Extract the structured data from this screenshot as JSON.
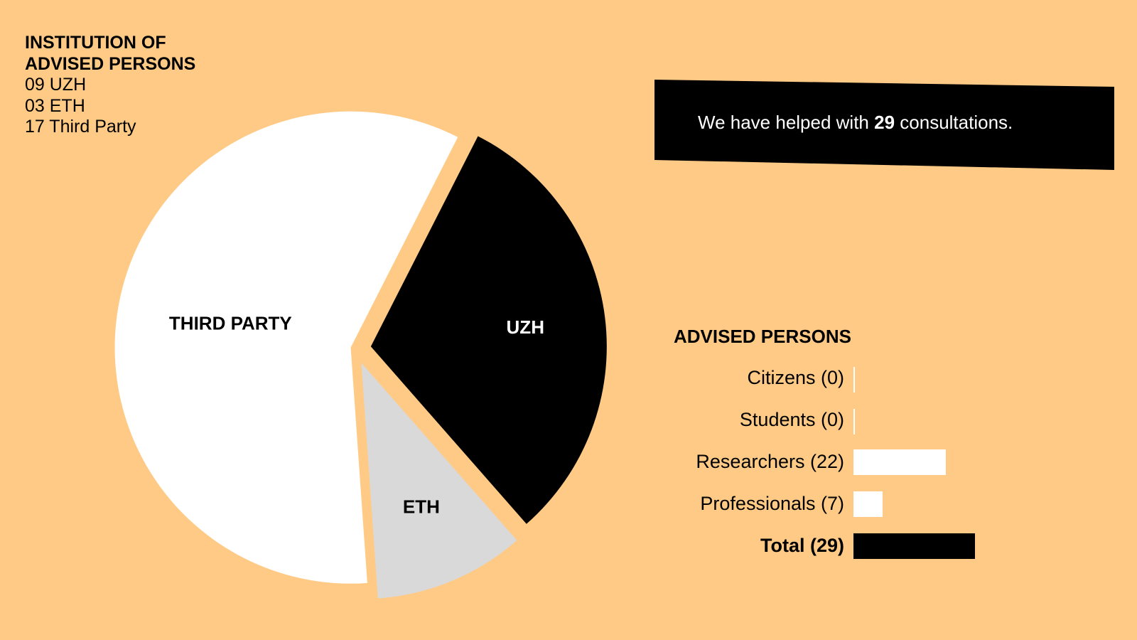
{
  "legend": {
    "title_line1": "INSTITUTION OF",
    "title_line2": "ADVISED PERSONS",
    "items": [
      "09 UZH",
      "03 ETH",
      "17 Third Party"
    ]
  },
  "banner": {
    "prefix": "We have helped with ",
    "count": "29",
    "suffix": " consultations."
  },
  "bar_section": {
    "title": "ADVISED PERSONS"
  },
  "colors": {
    "background": "#FFCA85",
    "uzh": "#000000",
    "eth": "#D9D9D9",
    "third_party": "#FFFFFF",
    "bar": "#FFFFFF",
    "total_bar": "#000000"
  },
  "chart_data": [
    {
      "type": "pie",
      "title": "INSTITUTION OF ADVISED PERSONS",
      "slices": [
        {
          "label": "UZH",
          "value": 9,
          "color": "#000000",
          "label_color": "#FFFFFF"
        },
        {
          "label": "ETH",
          "value": 3,
          "color": "#D9D9D9",
          "label_color": "#000000"
        },
        {
          "label": "THIRD PARTY",
          "value": 17,
          "color": "#FFFFFF",
          "label_color": "#000000"
        }
      ]
    },
    {
      "type": "bar",
      "orientation": "horizontal",
      "title": "ADVISED PERSONS",
      "categories": [
        "Citizens (0)",
        "Students (0)",
        "Researchers (22)",
        "Professionals (7)",
        "Total (29)"
      ],
      "values": [
        0,
        0,
        22,
        7,
        29
      ],
      "highlight": [
        false,
        false,
        false,
        false,
        true
      ]
    }
  ]
}
